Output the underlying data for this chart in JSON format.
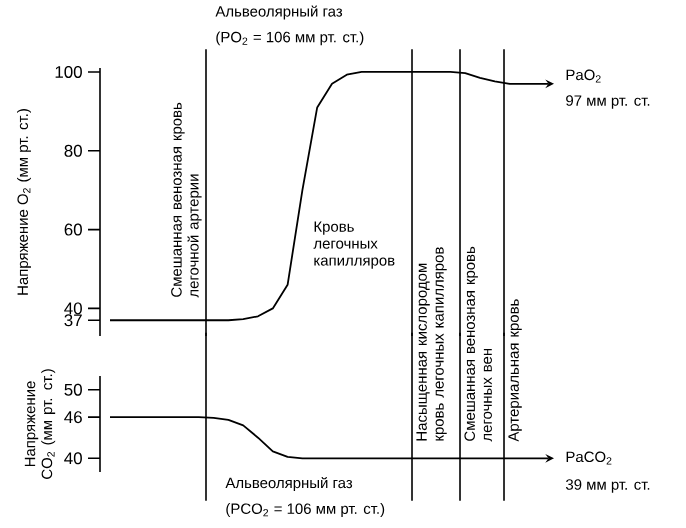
{
  "chart_data": [
    {
      "type": "line",
      "ylabel": "Напряжение O$_{2}$ (мм рт. ст.)",
      "categories": [
        null,
        null,
        null,
        null,
        null,
        null,
        null,
        null,
        null,
        null,
        null,
        null,
        null,
        null,
        null,
        null,
        null,
        null,
        null,
        null,
        null,
        null,
        null,
        null,
        null,
        null,
        null,
        null,
        null,
        null,
        null
      ],
      "series": [
        {
          "color": "#000000",
          "values": [
            37,
            37,
            37,
            37,
            37,
            37,
            37,
            37,
            37,
            37.3,
            38,
            40,
            46,
            70,
            91,
            97,
            99.3,
            100,
            100,
            100,
            100,
            100,
            100,
            100,
            99.7,
            98.5,
            97.6,
            97,
            97,
            97,
            97
          ]
        }
      ],
      "ylim": [
        33,
        101
      ],
      "yticks": [
        37,
        40,
        60,
        80,
        100
      ],
      "tick_labels": "y",
      "annotations": [
        "Альвеолярный газ",
        "(PO$_{2}$ = 106 мм рт. ст.)",
        "Кровь легочных капилляров",
        "PaO$_{2}$",
        "97 мм рт. ст.",
        "Смешанная венозная кровь легочной артерии",
        "Насыщенная кислородом кровь легочных капилляров",
        "Смешанная венозная кровь легочных вен",
        "Артериальная кровь"
      ]
    },
    {
      "type": "line",
      "ylabel": "Напряжение CO$_{2}$ (мм рт. ст.)",
      "categories": [
        null,
        null,
        null,
        null,
        null,
        null,
        null,
        null,
        null,
        null,
        null,
        null,
        null,
        null,
        null,
        null,
        null,
        null,
        null,
        null,
        null,
        null,
        null,
        null,
        null,
        null,
        null,
        null,
        null,
        null,
        null
      ],
      "series": [
        {
          "color": "#000000",
          "values": [
            46,
            46,
            46,
            46,
            46,
            46,
            46,
            45.9,
            45.6,
            44.8,
            43,
            41,
            40.2,
            40,
            40,
            40,
            40,
            40,
            40,
            40,
            40,
            40,
            40,
            40,
            40,
            40,
            40,
            40,
            40,
            40,
            40
          ]
        }
      ],
      "ylim": [
        38,
        52
      ],
      "yticks": [
        40,
        46,
        50
      ],
      "tick_labels": "y",
      "annotations": [
        "PaCO$_{2}$",
        "39 мм рт. ст.",
        "Альвеолярный газ",
        "(PCO$_{2}$ = 106 мм рт. ст.)"
      ]
    }
  ]
}
